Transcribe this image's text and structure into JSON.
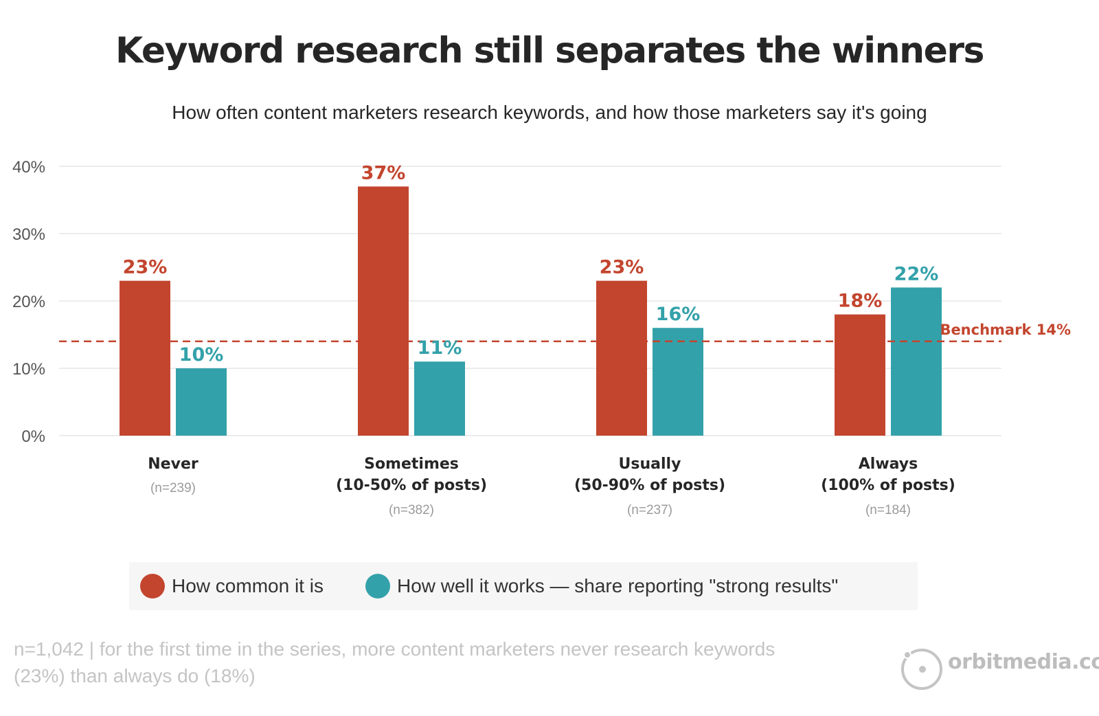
{
  "title": "Keyword research still separates the winners",
  "subtitle": "How often content marketers research keywords, and how those marketers say it's going",
  "chart_data": {
    "type": "bar",
    "categories": [
      "Never",
      "Sometimes",
      "Usually",
      "Always"
    ],
    "category_sublabels": [
      "",
      "(10-50% of posts)",
      "(50-90% of posts)",
      "(100% of posts)"
    ],
    "category_n": [
      "(n=239)",
      "(n=382)",
      "(n=237)",
      "(n=184)"
    ],
    "series": [
      {
        "name": "How common it is",
        "values": [
          23,
          37,
          23,
          18
        ],
        "labels": [
          "23%",
          "37%",
          "23%",
          "18%"
        ],
        "color": "#c3452e"
      },
      {
        "name": "How well it works — share reporting \"strong results\"",
        "values": [
          10,
          11,
          16,
          22
        ],
        "labels": [
          "10%",
          "11%",
          "16%",
          "22%"
        ],
        "color": "#33a1aa"
      }
    ],
    "ylim": [
      0,
      40
    ],
    "yticks": [
      0,
      10,
      20,
      30,
      40
    ],
    "ytick_labels": [
      "0%",
      "10%",
      "20%",
      "30%",
      "40%"
    ],
    "grid": true,
    "benchmark": {
      "value": 14,
      "label": "Benchmark 14%",
      "color": "#c3452e"
    },
    "legend_placement": "bottom"
  },
  "footnote": "n=1,042 | for the first time in the series, more content marketers never research keywords (23%) than always do (18%)",
  "brand": {
    "text": "orbitmedia.com"
  }
}
